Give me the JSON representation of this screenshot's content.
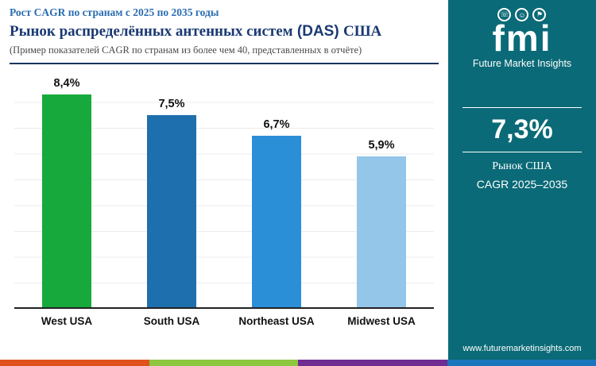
{
  "header": {
    "subtitle": "Рост CAGR по странам с 2025 по 2035 годы",
    "title_main": "Рынок распределённых антенных систем",
    "title_das": "(DAS)",
    "title_region": "США",
    "note": "(Пример показателей CAGR по странам из более чем 40, представленных в отчёте)"
  },
  "chart_data": {
    "type": "bar",
    "title": "Рынок распределённых антенных систем (DAS) США — рост CAGR по странам с 2025 по 2035 годы",
    "categories": [
      "West USA",
      "South USA",
      "Northeast USA",
      "Midwest USA"
    ],
    "values": [
      8.4,
      7.5,
      6.7,
      5.9
    ],
    "value_labels": [
      "8,4%",
      "7,5%",
      "6,7%",
      "5,9%"
    ],
    "bar_colors": [
      "#17a93b",
      "#1e6fad",
      "#2b8fd8",
      "#93c6e8"
    ],
    "xlabel": "",
    "ylabel": "",
    "ylim": [
      0,
      9
    ],
    "grid": true,
    "legend": "none"
  },
  "sidebar": {
    "bg_color": "#0b6a77",
    "logo_text": "fmi",
    "logo_icons": [
      {
        "name": "phone-icon",
        "glyph": "☏"
      },
      {
        "name": "person-icon",
        "glyph": "☺"
      },
      {
        "name": "flag-icon",
        "glyph": "⚑"
      }
    ],
    "brand": "Future Market Insights",
    "highlight_value": "7,3%",
    "highlight_label_1": "Рынок США",
    "highlight_label_2": "CAGR 2025–2035",
    "website": "www.futuremarketinsights.com"
  },
  "footer_stripe_colors": [
    "#e0521c",
    "#8dc63f",
    "#6f2c91",
    "#1b75bc"
  ]
}
